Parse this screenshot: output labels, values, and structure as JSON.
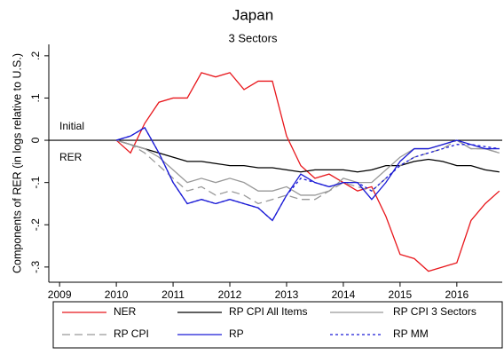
{
  "chart_data": {
    "type": "line",
    "title": "Japan",
    "subtitle": "3 Sectors",
    "y_label": "Components of RER (in logs relative to U.S.)",
    "annotations": [
      "Initial",
      "RER"
    ],
    "x": [
      2010,
      2010.25,
      2010.5,
      2010.75,
      2011,
      2011.25,
      2011.5,
      2011.75,
      2012,
      2012.25,
      2012.5,
      2012.75,
      2013,
      2013.25,
      2013.5,
      2013.75,
      2014,
      2014.25,
      2014.5,
      2014.75,
      2015,
      2015.25,
      2015.5,
      2015.75,
      2016,
      2016.25,
      2016.5,
      2016.75
    ],
    "xlim": [
      2008.81,
      2016.8
    ],
    "xticks": [
      2009,
      2010,
      2011,
      2012,
      2013,
      2014,
      2015,
      2016
    ],
    "ylim": [
      -0.336,
      0.227
    ],
    "yticks": [
      {
        "value": -0.3,
        "label": "-.3"
      },
      {
        "value": -0.2,
        "label": "-.2"
      },
      {
        "value": -0.1,
        "label": "-.1"
      },
      0,
      {
        "value": 0.1,
        "label": ".1"
      },
      {
        "value": 0.2,
        "label": ".2"
      }
    ],
    "series": [
      {
        "name": "NER",
        "color": "#e8161b",
        "style": "solid",
        "values": [
          0,
          -0.03,
          0.04,
          0.09,
          0.1,
          0.1,
          0.16,
          0.15,
          0.16,
          0.12,
          0.14,
          0.14,
          0.01,
          -0.06,
          -0.09,
          -0.08,
          -0.1,
          -0.12,
          -0.11,
          -0.18,
          -0.27,
          -0.28,
          -0.31,
          -0.3,
          -0.29,
          -0.19,
          -0.15,
          -0.12
        ]
      },
      {
        "name": "RP CPI All Items",
        "color": "#000000",
        "style": "solid",
        "values": [
          0,
          -0.01,
          -0.02,
          -0.03,
          -0.04,
          -0.05,
          -0.05,
          -0.055,
          -0.06,
          -0.06,
          -0.065,
          -0.065,
          -0.07,
          -0.075,
          -0.07,
          -0.07,
          -0.07,
          -0.075,
          -0.07,
          -0.06,
          -0.06,
          -0.05,
          -0.045,
          -0.05,
          -0.06,
          -0.06,
          -0.07,
          -0.075
        ]
      },
      {
        "name": "RP CPI 3 Sectors",
        "color": "#999999",
        "style": "solid",
        "values": [
          0,
          -0.01,
          -0.02,
          -0.04,
          -0.07,
          -0.1,
          -0.09,
          -0.1,
          -0.09,
          -0.1,
          -0.12,
          -0.12,
          -0.11,
          -0.13,
          -0.13,
          -0.12,
          -0.09,
          -0.1,
          -0.1,
          -0.07,
          -0.04,
          -0.02,
          -0.02,
          -0.01,
          0,
          -0.02,
          -0.02,
          -0.03
        ]
      },
      {
        "name": "RP CPI",
        "color": "#999999",
        "style": "longdash",
        "values": [
          0,
          -0.01,
          -0.03,
          -0.06,
          -0.09,
          -0.12,
          -0.11,
          -0.13,
          -0.12,
          -0.13,
          -0.15,
          -0.14,
          -0.13,
          -0.14,
          -0.14,
          -0.12,
          -0.1,
          -0.11,
          -0.12,
          -0.09,
          -0.06,
          -0.04,
          -0.03,
          -0.02,
          0,
          -0.02,
          -0.02,
          -0.03
        ]
      },
      {
        "name": "RP",
        "color": "#1a1ad6",
        "style": "solid",
        "values": [
          0,
          0.01,
          0.03,
          -0.03,
          -0.1,
          -0.15,
          -0.14,
          -0.15,
          -0.14,
          -0.15,
          -0.16,
          -0.19,
          -0.13,
          -0.08,
          -0.1,
          -0.11,
          -0.1,
          -0.1,
          -0.14,
          -0.1,
          -0.05,
          -0.02,
          -0.02,
          -0.01,
          0,
          -0.01,
          -0.02,
          -0.02
        ]
      },
      {
        "name": "RP MM",
        "color": "#1a1ad6",
        "style": "shortdash",
        "values": [
          0,
          0.01,
          0.03,
          -0.03,
          -0.1,
          -0.15,
          -0.14,
          -0.15,
          -0.14,
          -0.15,
          -0.16,
          -0.19,
          -0.13,
          -0.09,
          -0.1,
          -0.11,
          -0.1,
          -0.1,
          -0.12,
          -0.09,
          -0.06,
          -0.04,
          -0.03,
          -0.02,
          -0.01,
          -0.01,
          -0.015,
          -0.02
        ]
      }
    ]
  }
}
